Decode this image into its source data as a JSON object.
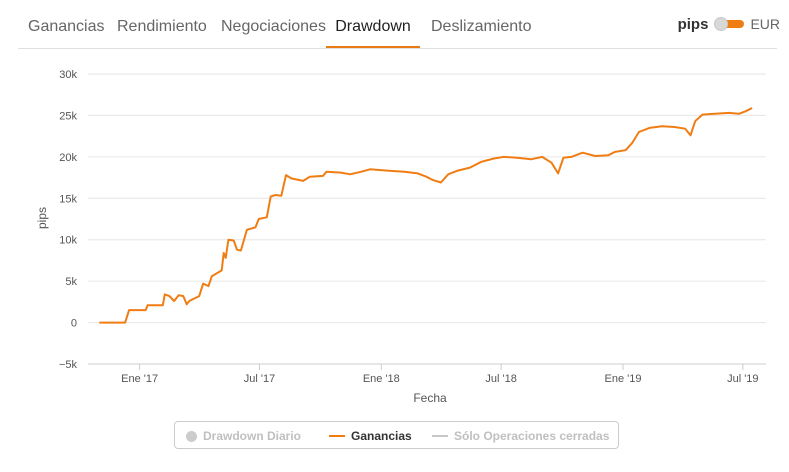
{
  "tabs": [
    {
      "label": "Ganancias",
      "active": false
    },
    {
      "label": "Rendimiento",
      "active": false
    },
    {
      "label": "Negociaciones",
      "active": false
    },
    {
      "label": "Drawdown",
      "active": true
    },
    {
      "label": "Deslizamiento",
      "active": false
    }
  ],
  "unit_toggle": {
    "left_label": "pips",
    "right_label": "EUR",
    "selected": "pips"
  },
  "legend": [
    {
      "label": "Drawdown Diario",
      "enabled": false,
      "marker": "dot"
    },
    {
      "label": "Ganancias",
      "enabled": true,
      "marker": "line"
    },
    {
      "label": "Sólo Operaciones cerradas",
      "enabled": false,
      "marker": "line"
    }
  ],
  "colors": {
    "series": "#f07d14",
    "accent": "#e87a14",
    "grid": "#e6e6e6",
    "disabled": "#c0c0c0"
  },
  "chart_data": {
    "type": "line",
    "title": "",
    "xlabel": "Fecha",
    "ylabel": "pips",
    "ylim": [
      -5000,
      30000
    ],
    "yticks": [
      -5000,
      0,
      5000,
      10000,
      15000,
      20000,
      25000,
      30000
    ],
    "ytick_labels": [
      "−5k",
      "0",
      "5k",
      "10k",
      "15k",
      "20k",
      "25k",
      "30k"
    ],
    "xticks": [
      "2017-01-01",
      "2017-07-01",
      "2018-01-01",
      "2018-07-01",
      "2019-01-01",
      "2019-07-01"
    ],
    "xtick_labels": [
      "Ene '17",
      "Jul '17",
      "Ene '18",
      "Jul '18",
      "Ene '19",
      "Jul '19"
    ],
    "xlim": [
      "2016-10-15",
      "2019-08-05"
    ],
    "grid": true,
    "legend_position": "bottom",
    "series": [
      {
        "name": "Ganancias",
        "color": "#f07d14",
        "points": [
          [
            "2016-11-01",
            0
          ],
          [
            "2016-12-10",
            0
          ],
          [
            "2016-12-16",
            1500
          ],
          [
            "2017-01-10",
            1500
          ],
          [
            "2017-01-13",
            2100
          ],
          [
            "2017-02-05",
            2100
          ],
          [
            "2017-02-08",
            3400
          ],
          [
            "2017-02-15",
            3200
          ],
          [
            "2017-02-22",
            2600
          ],
          [
            "2017-03-01",
            3300
          ],
          [
            "2017-03-08",
            3200
          ],
          [
            "2017-03-13",
            2200
          ],
          [
            "2017-03-17",
            2600
          ],
          [
            "2017-04-01",
            3200
          ],
          [
            "2017-04-07",
            4700
          ],
          [
            "2017-04-15",
            4400
          ],
          [
            "2017-04-20",
            5600
          ],
          [
            "2017-05-05",
            6300
          ],
          [
            "2017-05-08",
            8400
          ],
          [
            "2017-05-11",
            7800
          ],
          [
            "2017-05-15",
            10000
          ],
          [
            "2017-05-23",
            9900
          ],
          [
            "2017-05-28",
            8800
          ],
          [
            "2017-06-03",
            8700
          ],
          [
            "2017-06-12",
            11200
          ],
          [
            "2017-06-25",
            11500
          ],
          [
            "2017-06-30",
            12500
          ],
          [
            "2017-07-12",
            12700
          ],
          [
            "2017-07-18",
            15200
          ],
          [
            "2017-07-25",
            15400
          ],
          [
            "2017-08-03",
            15300
          ],
          [
            "2017-08-10",
            17800
          ],
          [
            "2017-08-18",
            17400
          ],
          [
            "2017-09-05",
            17100
          ],
          [
            "2017-09-15",
            17600
          ],
          [
            "2017-10-05",
            17700
          ],
          [
            "2017-10-10",
            18200
          ],
          [
            "2017-11-01",
            18100
          ],
          [
            "2017-11-15",
            17900
          ],
          [
            "2017-12-01",
            18200
          ],
          [
            "2017-12-15",
            18500
          ],
          [
            "2018-01-15",
            18300
          ],
          [
            "2018-02-05",
            18200
          ],
          [
            "2018-02-25",
            18000
          ],
          [
            "2018-03-10",
            17600
          ],
          [
            "2018-03-20",
            17200
          ],
          [
            "2018-04-01",
            16900
          ],
          [
            "2018-04-12",
            17900
          ],
          [
            "2018-04-25",
            18300
          ],
          [
            "2018-05-15",
            18700
          ],
          [
            "2018-06-01",
            19400
          ],
          [
            "2018-06-20",
            19800
          ],
          [
            "2018-07-05",
            20000
          ],
          [
            "2018-07-25",
            19900
          ],
          [
            "2018-08-15",
            19700
          ],
          [
            "2018-09-01",
            20000
          ],
          [
            "2018-09-15",
            19300
          ],
          [
            "2018-09-25",
            18000
          ],
          [
            "2018-10-03",
            19900
          ],
          [
            "2018-10-15",
            20000
          ],
          [
            "2018-11-01",
            20500
          ],
          [
            "2018-11-20",
            20100
          ],
          [
            "2018-12-10",
            20200
          ],
          [
            "2018-12-20",
            20600
          ],
          [
            "2019-01-05",
            20800
          ],
          [
            "2019-01-15",
            21700
          ],
          [
            "2019-01-25",
            23000
          ],
          [
            "2019-02-10",
            23500
          ],
          [
            "2019-03-01",
            23700
          ],
          [
            "2019-03-20",
            23600
          ],
          [
            "2019-04-05",
            23400
          ],
          [
            "2019-04-13",
            22600
          ],
          [
            "2019-04-20",
            24300
          ],
          [
            "2019-05-01",
            25100
          ],
          [
            "2019-05-20",
            25200
          ],
          [
            "2019-06-10",
            25300
          ],
          [
            "2019-06-25",
            25200
          ],
          [
            "2019-07-05",
            25500
          ],
          [
            "2019-07-15",
            25900
          ]
        ]
      }
    ]
  }
}
